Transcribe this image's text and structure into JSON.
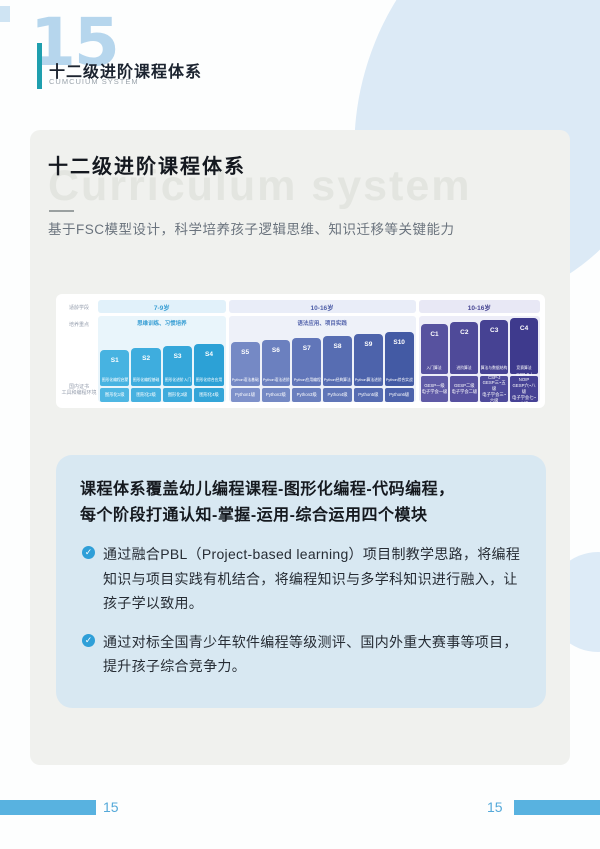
{
  "header": {
    "chapter_number": "15",
    "title": "十二级进阶课程体系",
    "subtitle": "CUMCUIUM SYSTEM"
  },
  "card": {
    "title": "十二级进阶课程体系",
    "watermark": "Curriculum system",
    "subtitle": "基于FSC模型设计，科学培养孩子逻辑思维、知识迁移等关键能力"
  },
  "chart": {
    "type": "table",
    "row_labels": {
      "age": "适龄学段",
      "focus": "培养重点",
      "cert": "国内证书\n工具和编程环境"
    },
    "groups": [
      {
        "age": "7-9岁",
        "focus": "思维训练、习惯培养",
        "age_bg": "#e1f1fa",
        "age_color": "#3a9fd4",
        "bg": "#e9f5fb",
        "focus_color": "#3a9fd4",
        "levels": [
          {
            "code": "S1",
            "label": "图形化编程启蒙",
            "cert": "图形化1级",
            "color": "#47b3e1",
            "cert_color": "#4fb7e3"
          },
          {
            "code": "S2",
            "label": "图形化编程基础",
            "cert": "图形化2级",
            "color": "#3eadde",
            "cert_color": "#46b1e0"
          },
          {
            "code": "S3",
            "label": "图形化进阶入门",
            "cert": "图形化3级",
            "color": "#35a7da",
            "cert_color": "#3dabdc"
          },
          {
            "code": "S4",
            "label": "图形化综合应用",
            "cert": "图形化4级",
            "color": "#2ca1d6",
            "cert_color": "#34a5d8"
          }
        ]
      },
      {
        "age": "10-16岁",
        "focus": "语法应用、项目实践",
        "age_bg": "#e9edf8",
        "age_color": "#4f5fa8",
        "bg": "#eef1f9",
        "focus_color": "#5565ad",
        "levels": [
          {
            "code": "S5",
            "label": "Python语法基础",
            "cert": "Python1级",
            "color": "#7589c5",
            "cert_color": "#7e91ca"
          },
          {
            "code": "S6",
            "label": "Python语法进阶",
            "cert": "Python2级",
            "color": "#6b80bf",
            "cert_color": "#7489c4"
          },
          {
            "code": "S7",
            "label": "Python应用编程",
            "cert": "Python3级",
            "color": "#6176b9",
            "cert_color": "#6a7fbe"
          },
          {
            "code": "S8",
            "label": "Python经典算法",
            "cert": "Python4级",
            "color": "#576db2",
            "cert_color": "#6076b8"
          },
          {
            "code": "S9",
            "label": "Python算法进阶",
            "cert": "Python5级",
            "color": "#4d63ab",
            "cert_color": "#566cb2"
          },
          {
            "code": "S10",
            "label": "Python综合实战",
            "cert": "Python6级",
            "color": "#435aa4",
            "cert_color": "#4c62ab"
          }
        ]
      },
      {
        "age": "10-16岁",
        "focus": "",
        "age_bg": "#e8e8f5",
        "age_color": "#474593",
        "bg": "#ededf8",
        "focus_color": "#474593",
        "levels": [
          {
            "code": "C1",
            "label": "入门算法",
            "cert": "GESP一级\n电子学会一级",
            "color": "#57529f",
            "cert_color": "#5f5aa6"
          },
          {
            "code": "C2",
            "label": "进阶算法",
            "cert": "GESP二级\n电子学会二级",
            "color": "#4f4a99",
            "cert_color": "#5751a0"
          },
          {
            "code": "C3",
            "label": "算法与数据结构",
            "cert": "CSP-J\nGESP三~五级\n电子学会三~六级",
            "color": "#464293",
            "cert_color": "#4e4a9b"
          },
          {
            "code": "C4",
            "label": "竞赛算法",
            "cert": "CSP-S / NOIP\nGESP六~八级\n电子学会七~八级",
            "color": "#3e3a8d",
            "cert_color": "#464295"
          }
        ]
      }
    ]
  },
  "infobox": {
    "heading_line1": "课程体系覆盖幼儿编程课程-图形化编程-代码编程，",
    "heading_line2": "每个阶段打通认知-掌握-运用-综合运用四个模块",
    "check_glyph": "✓",
    "bullets": [
      "通过融合PBL（Project-based  learning）项目制教学思路，将编程知识与项目实践有机结合，将编程知识与多学科知识进行融入，让孩子学以致用。",
      "通过对标全国青少年软件编程等级测评、国内外重大赛事等项目，提升孩子综合竞争力。"
    ]
  },
  "footer": {
    "left_page": "15",
    "right_page": "15"
  },
  "colors": {
    "accent_teal": "#1f9fae",
    "sky_blue": "#58b2e0",
    "page_number_blue": "#55a9d9",
    "card_bg": "#f0f1ee",
    "info_bg": "#d8e8f2",
    "blob_blue": "#dceaf6"
  }
}
